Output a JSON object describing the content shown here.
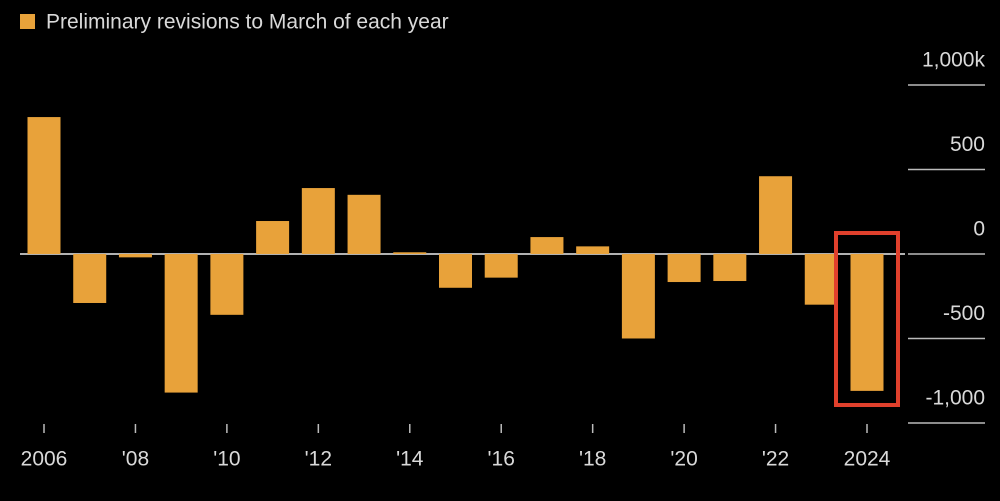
{
  "chart_data": {
    "type": "bar",
    "legend_label": "Preliminary revisions to March of each year",
    "categories": [
      "2006",
      null,
      "'08",
      null,
      "'10",
      null,
      "'12",
      null,
      "'14",
      null,
      "'16",
      null,
      "'18",
      null,
      "'20",
      null,
      "'22",
      null,
      "2024"
    ],
    "series": [
      {
        "name": "Preliminary revisions to March of each year",
        "color": "#e8a23a",
        "values": [
          810,
          -290,
          -20,
          -820,
          -360,
          195,
          390,
          350,
          10,
          -200,
          -140,
          100,
          45,
          -500,
          -166,
          -160,
          460,
          -300,
          -810
        ]
      }
    ],
    "ylim": [
      -1100,
      1150
    ],
    "yticks": [
      {
        "value": 1000,
        "label": "1,000k"
      },
      500,
      0,
      -500,
      {
        "value": -1000,
        "label": "-1,000"
      }
    ],
    "grid": false
  }
}
